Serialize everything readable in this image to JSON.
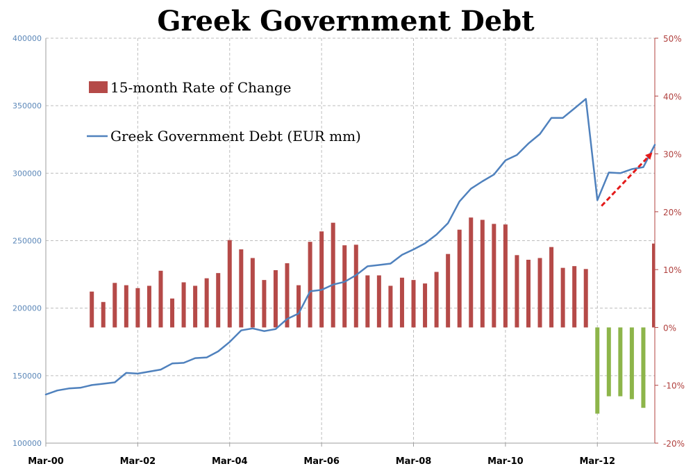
{
  "chart_data": {
    "type": "bar+line",
    "title": "Greek Government Debt",
    "x_tick_labels": [
      "Mar-00",
      "Mar-02",
      "Mar-04",
      "Mar-06",
      "Mar-08",
      "Mar-10",
      "Mar-12"
    ],
    "left_axis": {
      "ylim": [
        100000,
        400000
      ],
      "ticks": [
        100000,
        150000,
        200000,
        250000,
        300000,
        350000,
        400000
      ],
      "tick_labels": [
        "100000",
        "150000",
        "200000",
        "250000",
        "300000",
        "350000",
        "400000"
      ],
      "color": "#5b87b8"
    },
    "right_axis": {
      "ylim": [
        -20,
        50
      ],
      "ticks": [
        -20,
        -10,
        0,
        10,
        20,
        30,
        40,
        50
      ],
      "tick_labels": [
        "-20%",
        "-10%",
        "0%",
        "10%",
        "20%",
        "30%",
        "40%",
        "50%"
      ],
      "color": "#b0403e"
    },
    "grid": true,
    "legend_placement": "top-left",
    "series": [
      {
        "name": "15-month Rate of Change",
        "type": "bar",
        "axis": "right",
        "positive_color": "#b54a48",
        "negative_color": "#8db54a",
        "x": [
          "Mar-01",
          "Jun-01",
          "Sep-01",
          "Dec-01",
          "Mar-02",
          "Jun-02",
          "Sep-02",
          "Dec-02",
          "Mar-03",
          "Jun-03",
          "Sep-03",
          "Dec-03",
          "Mar-04",
          "Jun-04",
          "Sep-04",
          "Dec-04",
          "Mar-05",
          "Jun-05",
          "Sep-05",
          "Dec-05",
          "Mar-06",
          "Jun-06",
          "Sep-06",
          "Dec-06",
          "Mar-07",
          "Jun-07",
          "Sep-07",
          "Dec-07",
          "Mar-08",
          "Jun-08",
          "Sep-08",
          "Dec-08",
          "Mar-09",
          "Jun-09",
          "Sep-09",
          "Dec-09",
          "Mar-10",
          "Jun-10",
          "Sep-10",
          "Dec-10",
          "Mar-11",
          "Jun-11",
          "Sep-11",
          "Dec-11",
          "Mar-12",
          "Jun-12",
          "Sep-12",
          "Dec-12",
          "Mar-13"
        ],
        "values": [
          6.2,
          4.4,
          7.7,
          7.3,
          6.8,
          7.2,
          9.8,
          5.0,
          7.8,
          7.2,
          8.5,
          9.4,
          15.1,
          13.5,
          12.0,
          8.2,
          9.9,
          11.1,
          7.3,
          14.8,
          16.6,
          18.1,
          14.2,
          14.3,
          9.0,
          9.0,
          7.2,
          8.6,
          8.2,
          7.6,
          9.6,
          12.7,
          16.9,
          19.0,
          18.6,
          17.9,
          17.8,
          12.5,
          11.7,
          12.0,
          13.9,
          10.3,
          10.6,
          10.1,
          -14.9,
          -11.9,
          -11.9,
          -12.4,
          -13.9
        ],
        "missing_after": "Mar-13",
        "last_value": 14.5
      },
      {
        "name": "Greek Government Debt (EUR mm)",
        "type": "line",
        "axis": "left",
        "color": "#4f81bd",
        "x": [
          "Mar-00",
          "Jun-00",
          "Sep-00",
          "Dec-00",
          "Mar-01",
          "Jun-01",
          "Sep-01",
          "Dec-01",
          "Mar-02",
          "Jun-02",
          "Sep-02",
          "Dec-02",
          "Mar-03",
          "Jun-03",
          "Sep-03",
          "Dec-03",
          "Mar-04",
          "Jun-04",
          "Sep-04",
          "Dec-04",
          "Mar-05",
          "Jun-05",
          "Sep-05",
          "Dec-05",
          "Mar-06",
          "Jun-06",
          "Sep-06",
          "Dec-06",
          "Mar-07",
          "Jun-07",
          "Sep-07",
          "Dec-07",
          "Mar-08",
          "Jun-08",
          "Sep-08",
          "Dec-08",
          "Mar-09",
          "Jun-09",
          "Sep-09",
          "Dec-09",
          "Mar-10",
          "Jun-10",
          "Sep-10",
          "Dec-10",
          "Mar-11",
          "Jun-11",
          "Sep-11",
          "Dec-11",
          "Mar-12",
          "Jun-12",
          "Sep-12",
          "Dec-12",
          "Mar-13",
          "Jun-13"
        ],
        "values": [
          136000,
          139000,
          140500,
          141000,
          143000,
          144000,
          145000,
          152000,
          151500,
          153000,
          154500,
          159000,
          159500,
          163000,
          163500,
          168000,
          175000,
          183500,
          185000,
          183000,
          184500,
          192000,
          196000,
          212500,
          213500,
          217500,
          219500,
          224500,
          231000,
          232000,
          233000,
          239500,
          243500,
          248000,
          254500,
          263000,
          279000,
          288500,
          294000,
          299000,
          309500,
          313500,
          322000,
          329000,
          341000,
          341000,
          348000,
          355000,
          280000,
          300500,
          300000,
          303000,
          304500,
          321000
        ]
      }
    ],
    "annotations": [
      {
        "type": "arrow",
        "style": "dashed",
        "color": "#e31b1b",
        "from": [
          "Mar-12",
          21
        ],
        "to": [
          "May-13",
          30
        ]
      }
    ]
  }
}
